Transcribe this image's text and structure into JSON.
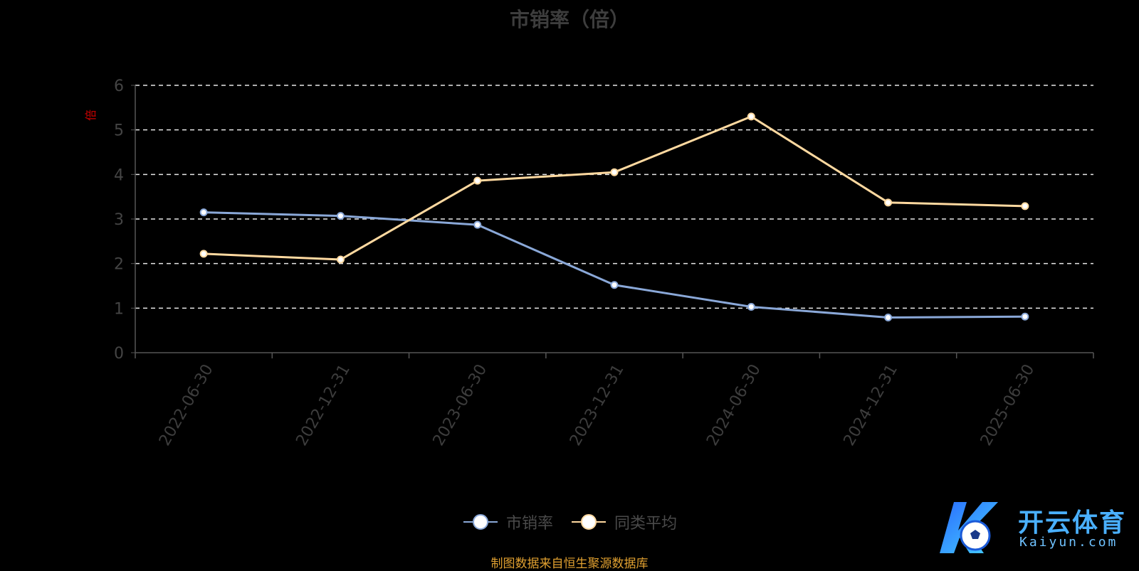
{
  "chart_data": {
    "type": "line",
    "title": "市销率（倍）",
    "ylabel": "倍",
    "categories": [
      "2022-06-30",
      "2022-12-31",
      "2023-06-30",
      "2023-12-31",
      "2024-06-30",
      "2024-12-31",
      "2025-06-30"
    ],
    "series": [
      {
        "name": "市销率",
        "values": [
          3.15,
          3.07,
          2.87,
          1.52,
          1.03,
          0.79,
          0.81
        ],
        "color": "#8aa8d8"
      },
      {
        "name": "同类平均",
        "values": [
          2.22,
          2.09,
          3.86,
          4.05,
          5.3,
          3.37,
          3.29
        ],
        "color": "#ffd9a0"
      }
    ],
    "ylim": [
      0,
      6
    ],
    "yticks": [
      0,
      1,
      2,
      3,
      4,
      5,
      6
    ],
    "grid": true,
    "legend": "bottom-center"
  },
  "footer": {
    "source": "制图数据来自恒生聚源数据库"
  },
  "watermark": {
    "cn": "开云体育",
    "en": "Kaiyun.com"
  }
}
